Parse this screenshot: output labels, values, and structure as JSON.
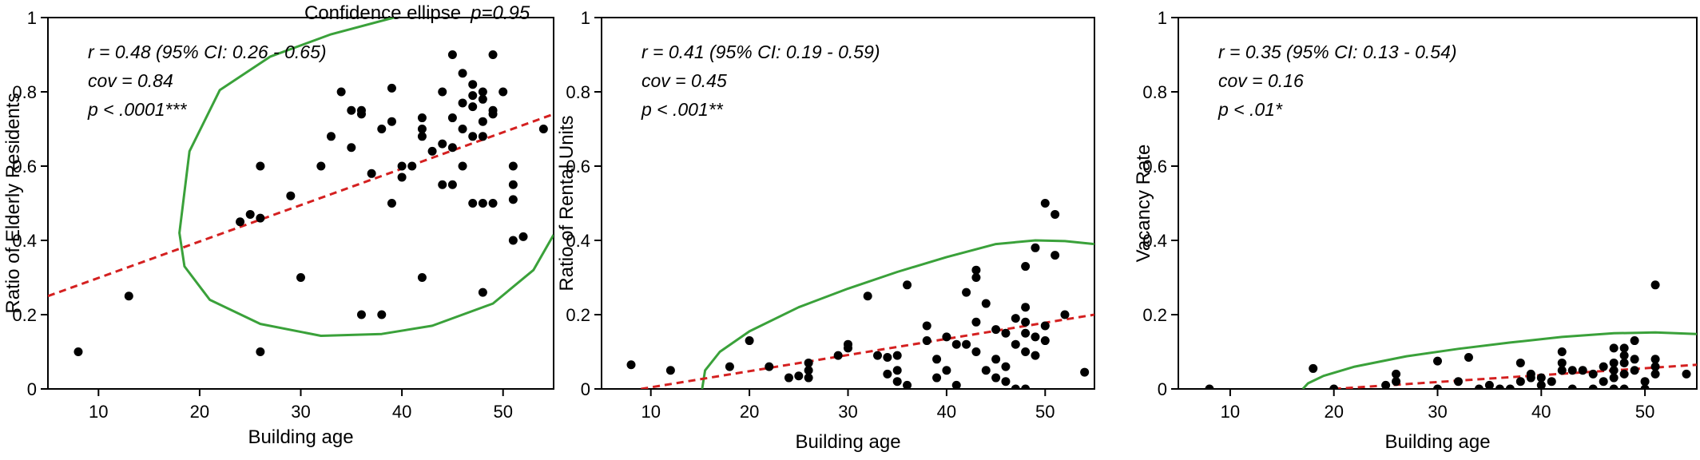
{
  "figure_caption": {
    "label": "Confidence ellipse",
    "p_value": "p=0.95"
  },
  "colors": {
    "points": "#000000",
    "regression_line": "#d42020",
    "confidence_ellipse": "#3aa13a",
    "axes": "#000000"
  },
  "chart_data": [
    {
      "type": "scatter",
      "xlabel": "Building age",
      "ylabel": "Ratio of Elderly Residents",
      "xlim": [
        5,
        55
      ],
      "ylim": [
        0,
        1
      ],
      "xticks": [
        10,
        20,
        30,
        40,
        50
      ],
      "yticks": [
        0,
        0.2,
        0.4,
        0.6,
        0.8,
        1
      ],
      "ytick_labels": [
        "0",
        "0.2",
        "0.4",
        "0.6",
        "0.8",
        "1"
      ],
      "stats": [
        "r = 0.48 (95% CI: 0.26 - 0.65)",
        "cov = 0.84",
        "p < .0001***"
      ],
      "regression": {
        "style": "dashed",
        "points": [
          [
            5,
            0.25
          ],
          [
            55,
            0.74
          ]
        ]
      },
      "ellipse": [
        [
          39.2,
          1.0
        ],
        [
          33.0,
          0.955
        ],
        [
          27.0,
          0.895
        ],
        [
          22.0,
          0.805
        ],
        [
          19.0,
          0.64
        ],
        [
          18.0,
          0.42
        ],
        [
          18.5,
          0.33
        ],
        [
          21.0,
          0.24
        ],
        [
          26.0,
          0.175
        ],
        [
          32.0,
          0.143
        ],
        [
          38.0,
          0.148
        ],
        [
          43.0,
          0.17
        ],
        [
          49.0,
          0.23
        ],
        [
          53.0,
          0.32
        ],
        [
          55.0,
          0.415
        ]
      ],
      "points": [
        [
          8,
          0.1
        ],
        [
          13,
          0.25
        ],
        [
          24,
          0.45
        ],
        [
          25,
          0.47
        ],
        [
          26,
          0.46
        ],
        [
          26,
          0.6
        ],
        [
          26,
          0.1
        ],
        [
          29,
          0.52
        ],
        [
          30,
          0.3
        ],
        [
          32,
          0.6
        ],
        [
          33,
          0.68
        ],
        [
          34,
          0.8
        ],
        [
          35,
          0.75
        ],
        [
          35,
          0.65
        ],
        [
          36,
          0.74
        ],
        [
          36,
          0.75
        ],
        [
          36,
          0.2
        ],
        [
          37,
          0.58
        ],
        [
          38,
          0.7
        ],
        [
          38,
          0.2
        ],
        [
          39,
          0.5
        ],
        [
          39,
          0.72
        ],
        [
          39,
          0.81
        ],
        [
          40,
          0.57
        ],
        [
          40,
          0.6
        ],
        [
          41,
          0.6
        ],
        [
          42,
          0.3
        ],
        [
          42,
          0.68
        ],
        [
          42,
          0.73
        ],
        [
          42,
          0.7
        ],
        [
          43,
          0.64
        ],
        [
          44,
          0.55
        ],
        [
          44,
          0.8
        ],
        [
          44,
          0.66
        ],
        [
          45,
          0.55
        ],
        [
          45,
          0.73
        ],
        [
          45,
          0.9
        ],
        [
          45,
          0.65
        ],
        [
          46,
          0.7
        ],
        [
          46,
          0.77
        ],
        [
          46,
          0.85
        ],
        [
          46,
          0.6
        ],
        [
          47,
          0.76
        ],
        [
          47,
          0.79
        ],
        [
          47,
          0.82
        ],
        [
          47,
          0.5
        ],
        [
          47,
          0.68
        ],
        [
          48,
          0.5
        ],
        [
          48,
          0.26
        ],
        [
          48,
          0.8
        ],
        [
          48,
          0.78
        ],
        [
          48,
          0.68
        ],
        [
          48,
          0.72
        ],
        [
          49,
          0.9
        ],
        [
          49,
          0.74
        ],
        [
          49,
          0.75
        ],
        [
          49,
          0.5
        ],
        [
          50,
          0.8
        ],
        [
          51,
          0.6
        ],
        [
          51,
          0.55
        ],
        [
          51,
          0.51
        ],
        [
          51,
          0.4
        ],
        [
          52,
          0.41
        ],
        [
          54,
          0.7
        ]
      ]
    },
    {
      "type": "scatter",
      "xlabel": "Building age",
      "ylabel": "Ratio of Rental Units",
      "xlim": [
        5,
        55
      ],
      "ylim": [
        0,
        1
      ],
      "xticks": [
        10,
        20,
        30,
        40,
        50
      ],
      "yticks": [
        0,
        0.2,
        0.4,
        0.6,
        0.8,
        1
      ],
      "ytick_labels": [
        "0",
        "0.2",
        "0.4",
        "0.6",
        "0.8",
        "1"
      ],
      "stats": [
        "r = 0.41 (95% CI: 0.19 - 0.59)",
        "cov = 0.45",
        "p < .001**"
      ],
      "regression": {
        "style": "dashed",
        "points": [
          [
            9,
            0.0
          ],
          [
            55,
            0.2
          ]
        ]
      },
      "ellipse": [
        [
          15.2,
          0.0
        ],
        [
          15.5,
          0.05
        ],
        [
          17.0,
          0.1
        ],
        [
          20.0,
          0.155
        ],
        [
          25.0,
          0.22
        ],
        [
          30.0,
          0.27
        ],
        [
          35.0,
          0.315
        ],
        [
          40.0,
          0.355
        ],
        [
          45.0,
          0.39
        ],
        [
          49.0,
          0.4
        ],
        [
          52.0,
          0.398
        ],
        [
          55.0,
          0.39
        ]
      ],
      "points": [
        [
          8,
          0.065
        ],
        [
          12,
          0.05
        ],
        [
          18,
          0.06
        ],
        [
          20,
          0.13
        ],
        [
          22,
          0.06
        ],
        [
          24,
          0.03
        ],
        [
          25,
          0.035
        ],
        [
          26,
          0.07
        ],
        [
          26,
          0.05
        ],
        [
          26,
          0.03
        ],
        [
          29,
          0.09
        ],
        [
          30,
          0.11
        ],
        [
          30,
          0.12
        ],
        [
          32,
          0.25
        ],
        [
          33,
          0.09
        ],
        [
          34,
          0.085
        ],
        [
          34,
          0.04
        ],
        [
          35,
          0.05
        ],
        [
          35,
          0.09
        ],
        [
          35,
          0.02
        ],
        [
          36,
          0.28
        ],
        [
          36,
          0.01
        ],
        [
          38,
          0.17
        ],
        [
          38,
          0.13
        ],
        [
          39,
          0.08
        ],
        [
          39,
          0.03
        ],
        [
          40,
          0.14
        ],
        [
          40,
          0.05
        ],
        [
          41,
          0.12
        ],
        [
          41,
          0.01
        ],
        [
          42,
          0.26
        ],
        [
          42,
          0.12
        ],
        [
          43,
          0.32
        ],
        [
          43,
          0.3
        ],
        [
          43,
          0.18
        ],
        [
          43,
          0.1
        ],
        [
          44,
          0.23
        ],
        [
          44,
          0.05
        ],
        [
          45,
          0.16
        ],
        [
          45,
          0.08
        ],
        [
          45,
          0.03
        ],
        [
          46,
          0.15
        ],
        [
          46,
          0.06
        ],
        [
          46,
          0.02
        ],
        [
          47,
          0.19
        ],
        [
          47,
          0.12
        ],
        [
          47,
          0.0
        ],
        [
          48,
          0.33
        ],
        [
          48,
          0.22
        ],
        [
          48,
          0.18
        ],
        [
          48,
          0.15
        ],
        [
          48,
          0.1
        ],
        [
          48,
          0.0
        ],
        [
          49,
          0.38
        ],
        [
          49,
          0.14
        ],
        [
          49,
          0.09
        ],
        [
          50,
          0.5
        ],
        [
          50,
          0.17
        ],
        [
          50,
          0.13
        ],
        [
          51,
          0.47
        ],
        [
          51,
          0.36
        ],
        [
          52,
          0.2
        ],
        [
          54,
          0.045
        ]
      ]
    },
    {
      "type": "scatter",
      "xlabel": "Building age",
      "ylabel": "Vacancy Rate",
      "xlim": [
        5,
        55
      ],
      "ylim": [
        0,
        1
      ],
      "xticks": [
        10,
        20,
        30,
        40,
        50
      ],
      "yticks": [
        0,
        0.2,
        0.4,
        0.6,
        0.8,
        1
      ],
      "ytick_labels": [
        "0",
        "0.2",
        "0.4",
        "0.6",
        "0.8",
        "1"
      ],
      "stats": [
        "r = 0.35 (95%  CI: 0.13 - 0.54)",
        "cov = 0.16",
        "p < .01*"
      ],
      "regression": {
        "style": "dashed",
        "points": [
          [
            20,
            0.0
          ],
          [
            55,
            0.065
          ]
        ]
      },
      "ellipse": [
        [
          17.0,
          0.0
        ],
        [
          17.5,
          0.015
        ],
        [
          19.0,
          0.035
        ],
        [
          22.0,
          0.06
        ],
        [
          27.0,
          0.088
        ],
        [
          32.0,
          0.108
        ],
        [
          37.0,
          0.125
        ],
        [
          42.0,
          0.14
        ],
        [
          47.0,
          0.15
        ],
        [
          51.0,
          0.152
        ],
        [
          55.0,
          0.148
        ]
      ],
      "points": [
        [
          8,
          0.0
        ],
        [
          18,
          0.055
        ],
        [
          20,
          0.0
        ],
        [
          25,
          0.01
        ],
        [
          26,
          0.02
        ],
        [
          26,
          0.04
        ],
        [
          30,
          0.0
        ],
        [
          30,
          0.075
        ],
        [
          32,
          0.02
        ],
        [
          33,
          0.085
        ],
        [
          34,
          0.0
        ],
        [
          35,
          0.01
        ],
        [
          36,
          0.0
        ],
        [
          37,
          0.0
        ],
        [
          38,
          0.07
        ],
        [
          38,
          0.02
        ],
        [
          39,
          0.04
        ],
        [
          39,
          0.03
        ],
        [
          40,
          0.03
        ],
        [
          40,
          0.01
        ],
        [
          41,
          0.02
        ],
        [
          42,
          0.1
        ],
        [
          42,
          0.07
        ],
        [
          42,
          0.05
        ],
        [
          43,
          0.05
        ],
        [
          43,
          0.0
        ],
        [
          44,
          0.05
        ],
        [
          45,
          0.04
        ],
        [
          45,
          0.0
        ],
        [
          46,
          0.06
        ],
        [
          46,
          0.02
        ],
        [
          47,
          0.11
        ],
        [
          47,
          0.07
        ],
        [
          47,
          0.05
        ],
        [
          47,
          0.03
        ],
        [
          47,
          0.0
        ],
        [
          48,
          0.11
        ],
        [
          48,
          0.09
        ],
        [
          48,
          0.07
        ],
        [
          48,
          0.04
        ],
        [
          48,
          0.0
        ],
        [
          49,
          0.13
        ],
        [
          49,
          0.08
        ],
        [
          49,
          0.05
        ],
        [
          50,
          0.02
        ],
        [
          50,
          0.0
        ],
        [
          51,
          0.28
        ],
        [
          51,
          0.08
        ],
        [
          51,
          0.06
        ],
        [
          51,
          0.04
        ],
        [
          54,
          0.04
        ]
      ]
    }
  ]
}
